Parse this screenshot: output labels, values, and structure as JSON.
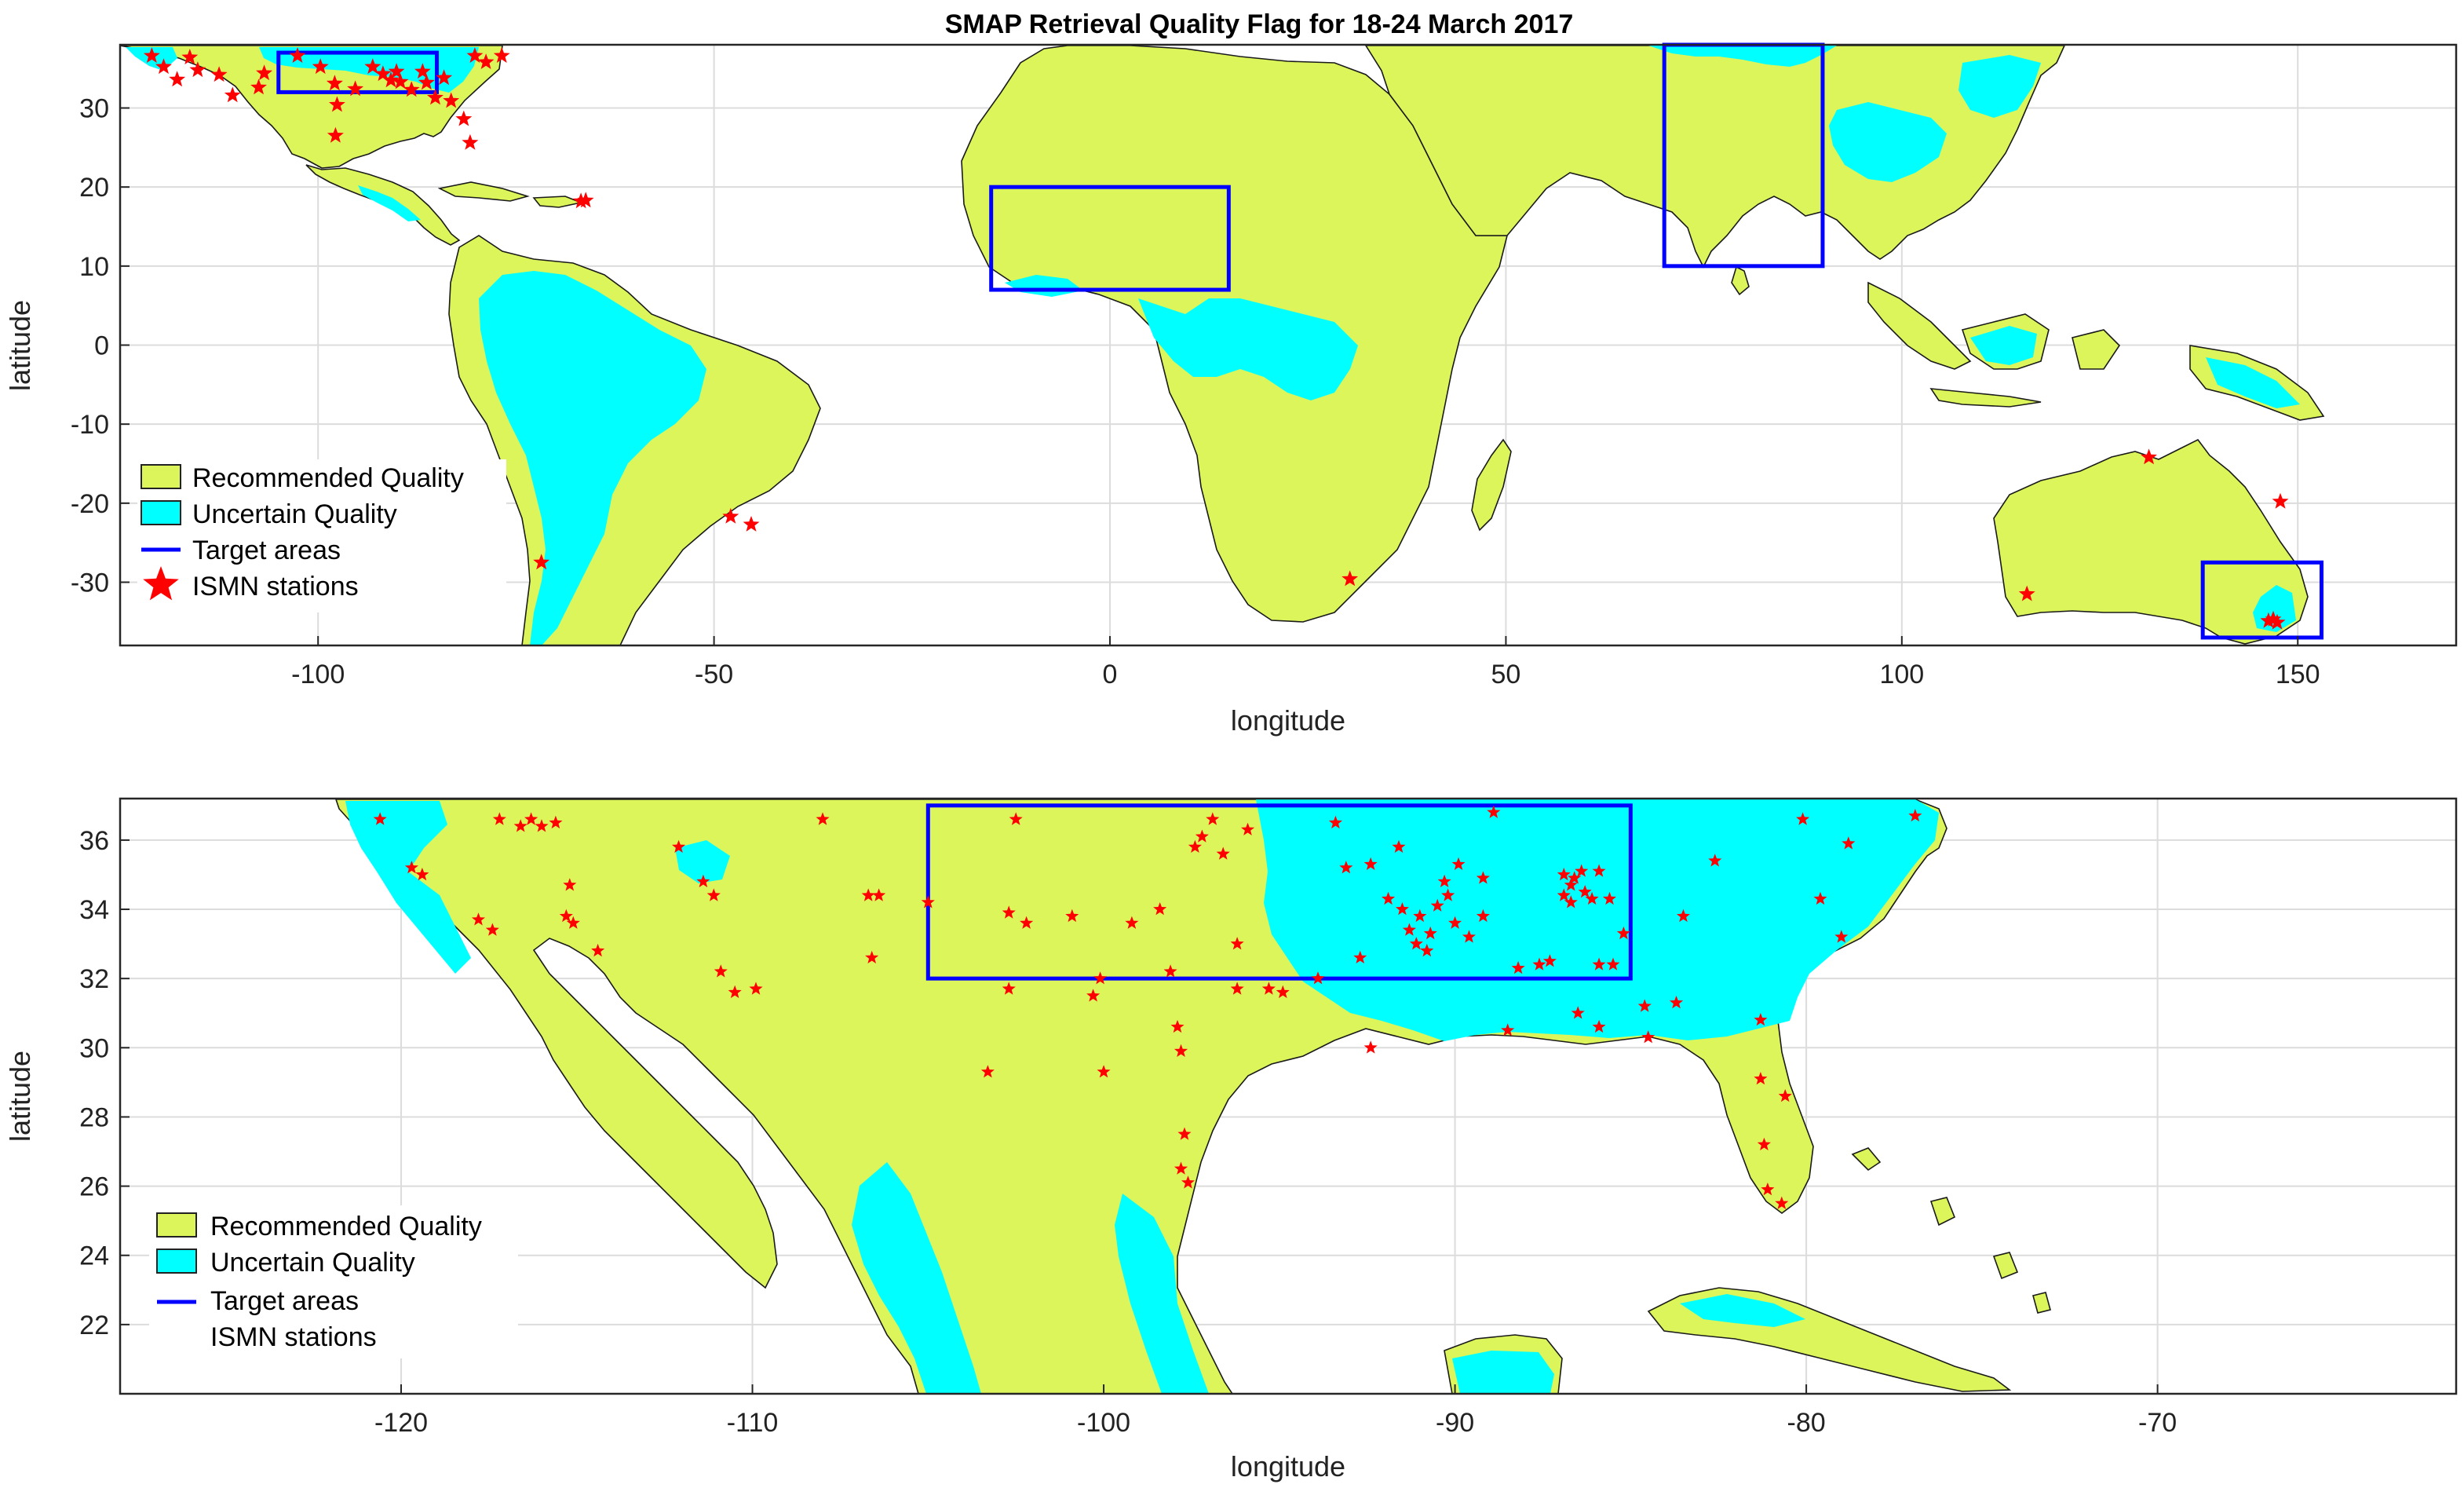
{
  "figure": {
    "title": "SMAP Retrieval Quality Flag  for 18-24 March 2017"
  },
  "colors": {
    "recommended": "#dcf55a",
    "uncertain": "#00ffff",
    "target": "#0000ff",
    "stations": "#ff0000",
    "coast": "#1a1a1a"
  },
  "chart_data": [
    {
      "type": "map",
      "name": "global",
      "xlabel": "longitude",
      "ylabel": "latitude",
      "xlim": [
        -125,
        170
      ],
      "ylim": [
        -38,
        38
      ],
      "xticks": [
        -100,
        -50,
        0,
        50,
        100,
        150
      ],
      "yticks": [
        -30,
        -20,
        -10,
        0,
        10,
        20,
        30
      ],
      "grid": true,
      "legend_position": "lower-left",
      "legend": [
        "Recommended Quality",
        "Uncertain Quality",
        "Target areas",
        "ISMN stations"
      ],
      "target_areas": [
        {
          "lon": [
            -105,
            -85
          ],
          "lat": [
            32,
            37
          ]
        },
        {
          "lon": [
            -15,
            15
          ],
          "lat": [
            7,
            20
          ]
        },
        {
          "lon": [
            70,
            90
          ],
          "lat": [
            10,
            38
          ]
        },
        {
          "lon": [
            138,
            153
          ],
          "lat": [
            -37,
            -27.5
          ]
        }
      ],
      "stations": [
        {
          "lon": -121,
          "lat": 36.6
        },
        {
          "lon": -119.5,
          "lat": 35.2
        },
        {
          "lon": -117.8,
          "lat": 33.6
        },
        {
          "lon": -116.2,
          "lat": 36.4
        },
        {
          "lon": -115.2,
          "lat": 34.8
        },
        {
          "lon": -112.5,
          "lat": 34.2
        },
        {
          "lon": -110.8,
          "lat": 31.6
        },
        {
          "lon": -107.5,
          "lat": 32.6
        },
        {
          "lon": -106.8,
          "lat": 34.4
        },
        {
          "lon": -102.6,
          "lat": 36.6
        },
        {
          "lon": -99.7,
          "lat": 35.2
        },
        {
          "lon": -97.9,
          "lat": 33.1
        },
        {
          "lon": -97.6,
          "lat": 30.4
        },
        {
          "lon": -97.8,
          "lat": 26.5
        },
        {
          "lon": -95.3,
          "lat": 32.4
        },
        {
          "lon": -93.1,
          "lat": 35.2
        },
        {
          "lon": -91.8,
          "lat": 34.3
        },
        {
          "lon": -90.8,
          "lat": 33.5
        },
        {
          "lon": -90.1,
          "lat": 34.6
        },
        {
          "lon": -89.6,
          "lat": 33.3
        },
        {
          "lon": -88.2,
          "lat": 32.3
        },
        {
          "lon": -86.8,
          "lat": 34.6
        },
        {
          "lon": -86.3,
          "lat": 33.2
        },
        {
          "lon": -85.2,
          "lat": 31.3
        },
        {
          "lon": -84.1,
          "lat": 33.8
        },
        {
          "lon": -83.2,
          "lat": 30.9
        },
        {
          "lon": -81.6,
          "lat": 28.6
        },
        {
          "lon": -80.8,
          "lat": 25.6
        },
        {
          "lon": -80.2,
          "lat": 36.6
        },
        {
          "lon": -78.8,
          "lat": 35.8
        },
        {
          "lon": -76.8,
          "lat": 36.6
        },
        {
          "lon": -66.8,
          "lat": 18.2
        },
        {
          "lon": -66.2,
          "lat": 18.3
        },
        {
          "lon": -71.8,
          "lat": -27.5
        },
        {
          "lon": -47.9,
          "lat": -21.7
        },
        {
          "lon": -45.3,
          "lat": -22.7
        },
        {
          "lon": 30.3,
          "lat": -29.6
        },
        {
          "lon": 131.2,
          "lat": -14.2
        },
        {
          "lon": 115.8,
          "lat": -31.5
        },
        {
          "lon": 147.8,
          "lat": -19.8
        },
        {
          "lon": 146.3,
          "lat": -34.9
        },
        {
          "lon": 147.4,
          "lat": -35.1
        },
        {
          "lon": 146.9,
          "lat": -34.7
        }
      ]
    },
    {
      "type": "map",
      "name": "contiguous-us",
      "xlabel": "longitude",
      "ylabel": "latitude",
      "xlim": [
        -128,
        -61.5
      ],
      "ylim": [
        20,
        37.2
      ],
      "xticks": [
        -120,
        -110,
        -100,
        -90,
        -80,
        -70
      ],
      "yticks": [
        22,
        24,
        26,
        28,
        30,
        32,
        34,
        36
      ],
      "grid": true,
      "legend_position": "lower-left",
      "legend": [
        "Recommended Quality",
        "Uncertain Quality",
        "Target areas",
        "ISMN stations"
      ],
      "target_areas": [
        {
          "lon": [
            -105,
            -85
          ],
          "lat": [
            32,
            37
          ]
        }
      ],
      "stations": [
        {
          "lon": -120.6,
          "lat": 36.6
        },
        {
          "lon": -119.7,
          "lat": 35.2
        },
        {
          "lon": -119.4,
          "lat": 35.0
        },
        {
          "lon": -117.8,
          "lat": 33.7
        },
        {
          "lon": -117.4,
          "lat": 33.4
        },
        {
          "lon": -117.2,
          "lat": 36.6
        },
        {
          "lon": -116.6,
          "lat": 36.4
        },
        {
          "lon": -116.3,
          "lat": 36.6
        },
        {
          "lon": -116.0,
          "lat": 36.4
        },
        {
          "lon": -115.6,
          "lat": 36.5
        },
        {
          "lon": -115.3,
          "lat": 33.8
        },
        {
          "lon": -115.1,
          "lat": 33.6
        },
        {
          "lon": -115.2,
          "lat": 34.7
        },
        {
          "lon": -114.4,
          "lat": 32.8
        },
        {
          "lon": -112.1,
          "lat": 35.8
        },
        {
          "lon": -111.4,
          "lat": 34.8
        },
        {
          "lon": -111.1,
          "lat": 34.4
        },
        {
          "lon": -110.9,
          "lat": 32.2
        },
        {
          "lon": -110.5,
          "lat": 31.6
        },
        {
          "lon": -109.9,
          "lat": 31.7
        },
        {
          "lon": -108.0,
          "lat": 36.6
        },
        {
          "lon": -106.7,
          "lat": 34.4
        },
        {
          "lon": -106.4,
          "lat": 34.4
        },
        {
          "lon": -106.6,
          "lat": 32.6
        },
        {
          "lon": -105.0,
          "lat": 34.2
        },
        {
          "lon": -103.3,
          "lat": 29.3
        },
        {
          "lon": -102.5,
          "lat": 36.6
        },
        {
          "lon": -102.7,
          "lat": 33.9
        },
        {
          "lon": -102.2,
          "lat": 33.6
        },
        {
          "lon": -102.7,
          "lat": 31.7
        },
        {
          "lon": -100.9,
          "lat": 33.8
        },
        {
          "lon": -100.3,
          "lat": 31.5
        },
        {
          "lon": -100.1,
          "lat": 32.0
        },
        {
          "lon": -100.0,
          "lat": 29.3
        },
        {
          "lon": -99.2,
          "lat": 33.6
        },
        {
          "lon": -98.4,
          "lat": 34.0
        },
        {
          "lon": -98.1,
          "lat": 32.2
        },
        {
          "lon": -97.9,
          "lat": 30.6
        },
        {
          "lon": -97.8,
          "lat": 29.9
        },
        {
          "lon": -97.7,
          "lat": 27.5
        },
        {
          "lon": -97.8,
          "lat": 26.5
        },
        {
          "lon": -97.6,
          "lat": 26.1
        },
        {
          "lon": -97.4,
          "lat": 35.8
        },
        {
          "lon": -97.2,
          "lat": 36.1
        },
        {
          "lon": -96.9,
          "lat": 36.6
        },
        {
          "lon": -96.6,
          "lat": 35.6
        },
        {
          "lon": -96.2,
          "lat": 33.0
        },
        {
          "lon": -96.2,
          "lat": 31.7
        },
        {
          "lon": -95.3,
          "lat": 31.7
        },
        {
          "lon": -95.9,
          "lat": 36.3
        },
        {
          "lon": -94.9,
          "lat": 31.6
        },
        {
          "lon": -93.9,
          "lat": 32.0
        },
        {
          "lon": -93.4,
          "lat": 36.5
        },
        {
          "lon": -93.1,
          "lat": 35.2
        },
        {
          "lon": -92.7,
          "lat": 32.6
        },
        {
          "lon": -92.4,
          "lat": 35.3
        },
        {
          "lon": -92.4,
          "lat": 30.0
        },
        {
          "lon": -91.6,
          "lat": 35.8
        },
        {
          "lon": -91.9,
          "lat": 34.3
        },
        {
          "lon": -91.5,
          "lat": 34.0
        },
        {
          "lon": -91.3,
          "lat": 33.4
        },
        {
          "lon": -91.0,
          "lat": 33.8
        },
        {
          "lon": -91.1,
          "lat": 33.0
        },
        {
          "lon": -90.8,
          "lat": 32.8
        },
        {
          "lon": -90.7,
          "lat": 33.3
        },
        {
          "lon": -90.5,
          "lat": 34.1
        },
        {
          "lon": -90.3,
          "lat": 34.8
        },
        {
          "lon": -90.2,
          "lat": 34.4
        },
        {
          "lon": -90.0,
          "lat": 33.6
        },
        {
          "lon": -89.6,
          "lat": 33.2
        },
        {
          "lon": -89.9,
          "lat": 35.3
        },
        {
          "lon": -89.2,
          "lat": 34.9
        },
        {
          "lon": -89.2,
          "lat": 33.8
        },
        {
          "lon": -88.9,
          "lat": 36.8
        },
        {
          "lon": -88.2,
          "lat": 32.3
        },
        {
          "lon": -88.5,
          "lat": 30.5
        },
        {
          "lon": -87.6,
          "lat": 32.4
        },
        {
          "lon": -87.3,
          "lat": 32.5
        },
        {
          "lon": -86.9,
          "lat": 35.0
        },
        {
          "lon": -86.7,
          "lat": 34.7
        },
        {
          "lon": -86.6,
          "lat": 34.9
        },
        {
          "lon": -86.4,
          "lat": 35.1
        },
        {
          "lon": -86.7,
          "lat": 34.2
        },
        {
          "lon": -86.3,
          "lat": 34.5
        },
        {
          "lon": -86.9,
          "lat": 34.4
        },
        {
          "lon": -86.1,
          "lat": 34.3
        },
        {
          "lon": -85.9,
          "lat": 35.1
        },
        {
          "lon": -85.6,
          "lat": 34.3
        },
        {
          "lon": -85.9,
          "lat": 32.4
        },
        {
          "lon": -85.5,
          "lat": 32.4
        },
        {
          "lon": -85.2,
          "lat": 33.3
        },
        {
          "lon": -86.5,
          "lat": 31.0
        },
        {
          "lon": -85.9,
          "lat": 30.6
        },
        {
          "lon": -84.6,
          "lat": 31.2
        },
        {
          "lon": -84.5,
          "lat": 30.3
        },
        {
          "lon": -83.7,
          "lat": 31.3
        },
        {
          "lon": -83.5,
          "lat": 33.8
        },
        {
          "lon": -82.6,
          "lat": 35.4
        },
        {
          "lon": -81.3,
          "lat": 30.8
        },
        {
          "lon": -81.3,
          "lat": 29.1
        },
        {
          "lon": -81.2,
          "lat": 27.2
        },
        {
          "lon": -80.6,
          "lat": 28.6
        },
        {
          "lon": -81.1,
          "lat": 25.9
        },
        {
          "lon": -80.7,
          "lat": 25.5
        },
        {
          "lon": -80.1,
          "lat": 36.6
        },
        {
          "lon": -79.6,
          "lat": 34.3
        },
        {
          "lon": -78.8,
          "lat": 35.9
        },
        {
          "lon": -79.0,
          "lat": 33.2
        },
        {
          "lon": -76.9,
          "lat": 36.7
        }
      ]
    }
  ]
}
